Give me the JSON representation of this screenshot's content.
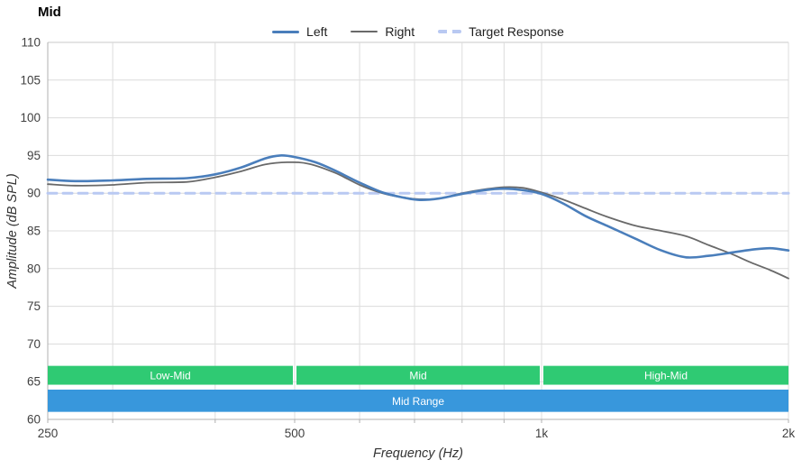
{
  "colors": {
    "background": "#ffffff",
    "grid": "#dcdcdc",
    "grid_top": "#c8c8c8",
    "axis": "#b0b0b0",
    "tick_label": "#404040",
    "axis_title": "#333333",
    "band_text": "#ffffff",
    "left_series": "#4a7ebb",
    "right_series": "#696969",
    "target_series": "#b9c9f2",
    "band_green": "#2fca73",
    "band_blue": "#3897dc"
  },
  "chart_data": {
    "type": "line",
    "title": "Mid",
    "xlabel": "Frequency (Hz)",
    "ylabel": "Amplitude (dB SPL)",
    "x_scale": "log",
    "xlim": [
      250,
      2000
    ],
    "ylim": [
      60,
      110
    ],
    "grid": true,
    "legend_position": "top-center",
    "x_ticks": [
      {
        "value": 250,
        "label": "250"
      },
      {
        "value": 500,
        "label": "500"
      },
      {
        "value": 1000,
        "label": "1k"
      },
      {
        "value": 2000,
        "label": "2k"
      }
    ],
    "x_gridlines": [
      300,
      400,
      500,
      600,
      700,
      800,
      900,
      1000,
      2000
    ],
    "y_ticks": [
      {
        "value": 60,
        "label": "60"
      },
      {
        "value": 65,
        "label": "65"
      },
      {
        "value": 70,
        "label": "70"
      },
      {
        "value": 75,
        "label": "75"
      },
      {
        "value": 80,
        "label": "80"
      },
      {
        "value": 85,
        "label": "85"
      },
      {
        "value": 90,
        "label": "90"
      },
      {
        "value": 95,
        "label": "95"
      },
      {
        "value": 100,
        "label": "100"
      },
      {
        "value": 105,
        "label": "105"
      },
      {
        "value": 110,
        "label": "110"
      }
    ],
    "series": [
      {
        "name": "Left",
        "color": "#4a7ebb",
        "width": 2.6,
        "dashed": false,
        "x": [
          250,
          270,
          300,
          330,
          370,
          400,
          430,
          460,
          480,
          500,
          530,
          560,
          600,
          640,
          680,
          710,
          750,
          800,
          850,
          900,
          950,
          1000,
          1060,
          1130,
          1200,
          1300,
          1400,
          1500,
          1600,
          1700,
          1800,
          1900,
          2000
        ],
        "values": [
          91.8,
          91.6,
          91.7,
          91.9,
          92.0,
          92.5,
          93.4,
          94.6,
          95.0,
          94.8,
          94.1,
          93.0,
          91.4,
          90.1,
          89.4,
          89.1,
          89.3,
          89.9,
          90.4,
          90.6,
          90.4,
          89.9,
          88.7,
          87.0,
          85.7,
          84.0,
          82.4,
          81.5,
          81.7,
          82.1,
          82.5,
          82.7,
          82.4
        ]
      },
      {
        "name": "Right",
        "color": "#696969",
        "width": 1.8,
        "dashed": false,
        "x": [
          250,
          270,
          300,
          330,
          370,
          400,
          430,
          460,
          490,
          520,
          560,
          600,
          640,
          680,
          710,
          750,
          800,
          850,
          900,
          950,
          1000,
          1060,
          1130,
          1200,
          1300,
          1400,
          1500,
          1600,
          1700,
          1800,
          1900,
          2000
        ],
        "values": [
          91.2,
          91.0,
          91.1,
          91.4,
          91.5,
          92.1,
          92.9,
          93.8,
          94.1,
          93.9,
          92.7,
          91.1,
          90.0,
          89.4,
          89.2,
          89.3,
          90.0,
          90.5,
          90.8,
          90.7,
          90.1,
          89.2,
          88.0,
          86.9,
          85.7,
          85.0,
          84.3,
          83.1,
          82.0,
          80.8,
          79.8,
          78.7
        ]
      },
      {
        "name": "Target Response",
        "color": "#b9c9f2",
        "width": 3,
        "dashed": true,
        "dash_pattern": [
          10,
          7
        ],
        "x": [
          250,
          2000
        ],
        "values": [
          90,
          90
        ]
      }
    ],
    "bands": [
      {
        "label": "Low-Mid",
        "from": 250,
        "to": 500,
        "y_from": 64.6,
        "y_to": 67.1,
        "color": "#2fca73"
      },
      {
        "label": "Mid",
        "from": 500,
        "to": 1000,
        "y_from": 64.6,
        "y_to": 67.1,
        "color": "#2fca73"
      },
      {
        "label": "High-Mid",
        "from": 1000,
        "to": 2000,
        "y_from": 64.6,
        "y_to": 67.1,
        "color": "#2fca73"
      },
      {
        "label": "Mid Range",
        "from": 250,
        "to": 2000,
        "y_from": 61.0,
        "y_to": 63.95,
        "color": "#3897dc"
      }
    ]
  }
}
